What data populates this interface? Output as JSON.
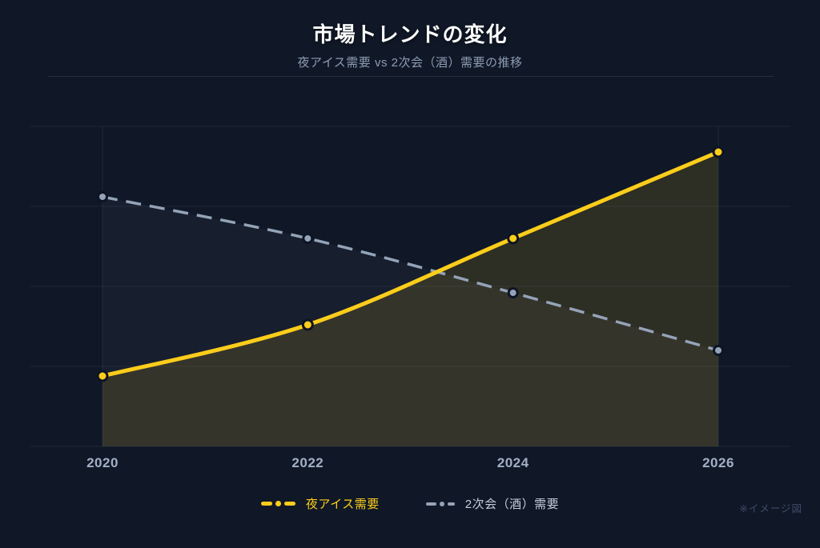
{
  "colors": {
    "background": "#101827",
    "accent_yellow": "#fccd1b",
    "slate_gray": "#94a3b8",
    "marker_ring": "#0d1423"
  },
  "header": {
    "title": "市場トレンドの変化",
    "subtitle": "夜アイス需要 vs 2次会（酒）需要の推移"
  },
  "chart_data": {
    "type": "line",
    "categories": [
      "2020",
      "2022",
      "2024",
      "2026"
    ],
    "series": [
      {
        "name": "夜アイス需要",
        "values": [
          22,
          38,
          65,
          92
        ],
        "color": "#fccd1b",
        "fill_color": "rgba(250, 204, 21, 0.13)",
        "label_color": "#fccd1b",
        "line_style": "solid",
        "marker": "circle"
      },
      {
        "name": "2次会（酒）需要",
        "values": [
          78,
          65,
          48,
          30
        ],
        "color": "#94a3b8",
        "fill_color": "rgba(148, 163, 184, 0.05)",
        "label_color": "#c3ceda",
        "line_style": "dashed",
        "marker": "circle"
      }
    ],
    "ylim": [
      0,
      100
    ],
    "y_axis_labels_visible": false,
    "grid": true,
    "smooth": true,
    "legend_position": "bottom"
  },
  "footnote": "※イメージ図"
}
